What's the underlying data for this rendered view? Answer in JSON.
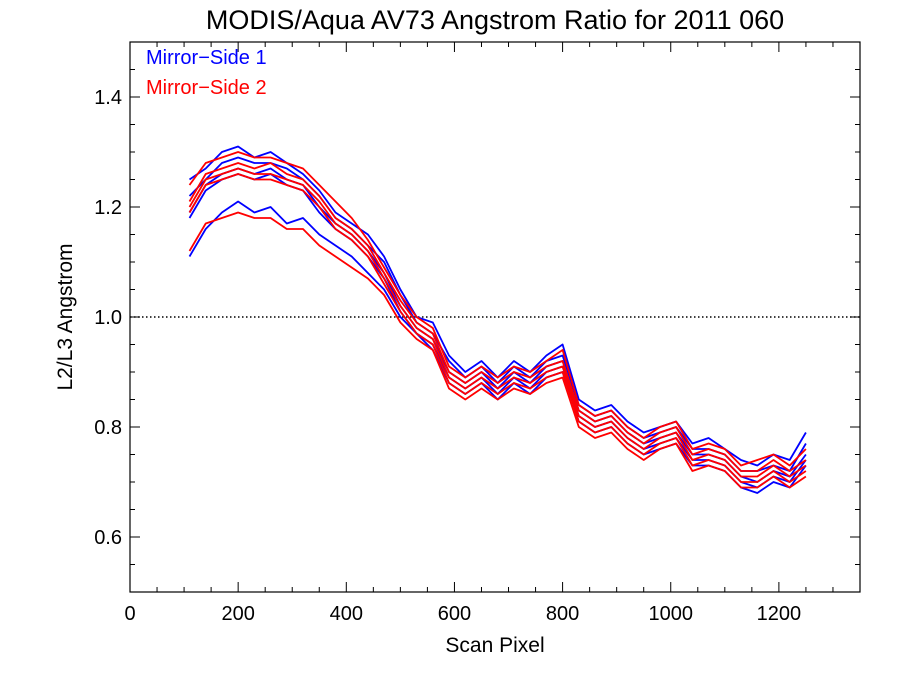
{
  "chart_data": {
    "type": "line",
    "title": "MODIS/Aqua AV73 Angstrom Ratio for 2011 060",
    "xlabel": "Scan Pixel",
    "ylabel": "L2/L3 Angstrom",
    "xlim": [
      0,
      1350
    ],
    "ylim": [
      0.5,
      1.5
    ],
    "xticks": [
      "0",
      "200",
      "400",
      "600",
      "800",
      "1000",
      "1200"
    ],
    "yticks": [
      "0.6",
      "0.8",
      "1.0",
      "1.2",
      "1.4"
    ],
    "reference_line": {
      "y": 1.0,
      "style": "dotted",
      "color": "#000000"
    },
    "legend_position": "top-left",
    "grid": false,
    "legend": [
      {
        "label": "Mirror−Side 1",
        "color": "#0000ff"
      },
      {
        "label": "Mirror−Side 2",
        "color": "#ff0000"
      }
    ],
    "x": [
      110,
      140,
      170,
      200,
      230,
      260,
      290,
      320,
      350,
      380,
      410,
      440,
      470,
      500,
      530,
      560,
      590,
      620,
      650,
      680,
      710,
      740,
      770,
      800,
      830,
      860,
      890,
      920,
      950,
      980,
      1010,
      1040,
      1070,
      1100,
      1130,
      1160,
      1190,
      1220,
      1250
    ],
    "series": [
      {
        "mirror_side": 1,
        "color": "#0000ff",
        "values": [
          1.25,
          1.27,
          1.3,
          1.31,
          1.29,
          1.3,
          1.28,
          1.26,
          1.23,
          1.19,
          1.17,
          1.15,
          1.11,
          1.05,
          1.0,
          0.99,
          0.93,
          0.9,
          0.92,
          0.89,
          0.92,
          0.9,
          0.93,
          0.95,
          0.85,
          0.83,
          0.84,
          0.81,
          0.79,
          0.8,
          0.81,
          0.77,
          0.78,
          0.76,
          0.74,
          0.73,
          0.75,
          0.74,
          0.79
        ]
      },
      {
        "mirror_side": 1,
        "color": "#0000ff",
        "values": [
          1.22,
          1.25,
          1.28,
          1.29,
          1.28,
          1.28,
          1.27,
          1.25,
          1.22,
          1.18,
          1.16,
          1.13,
          1.1,
          1.04,
          0.99,
          0.97,
          0.92,
          0.89,
          0.91,
          0.88,
          0.91,
          0.89,
          0.92,
          0.93,
          0.84,
          0.82,
          0.83,
          0.8,
          0.78,
          0.79,
          0.8,
          0.76,
          0.76,
          0.75,
          0.72,
          0.72,
          0.73,
          0.72,
          0.77
        ]
      },
      {
        "mirror_side": 1,
        "color": "#0000ff",
        "values": [
          1.19,
          1.24,
          1.26,
          1.27,
          1.26,
          1.27,
          1.25,
          1.24,
          1.2,
          1.17,
          1.15,
          1.12,
          1.08,
          1.02,
          0.98,
          0.96,
          0.9,
          0.88,
          0.9,
          0.87,
          0.9,
          0.88,
          0.91,
          0.92,
          0.83,
          0.81,
          0.82,
          0.79,
          0.77,
          0.78,
          0.79,
          0.75,
          0.75,
          0.74,
          0.71,
          0.7,
          0.72,
          0.71,
          0.75
        ]
      },
      {
        "mirror_side": 1,
        "color": "#0000ff",
        "values": [
          1.18,
          1.23,
          1.25,
          1.26,
          1.25,
          1.26,
          1.24,
          1.23,
          1.19,
          1.16,
          1.14,
          1.11,
          1.07,
          1.01,
          0.97,
          0.95,
          0.89,
          0.87,
          0.89,
          0.86,
          0.89,
          0.87,
          0.9,
          0.91,
          0.82,
          0.8,
          0.81,
          0.78,
          0.76,
          0.77,
          0.78,
          0.74,
          0.74,
          0.73,
          0.7,
          0.69,
          0.71,
          0.7,
          0.74
        ]
      },
      {
        "mirror_side": 1,
        "color": "#0000ff",
        "values": [
          1.11,
          1.16,
          1.19,
          1.21,
          1.19,
          1.2,
          1.17,
          1.18,
          1.15,
          1.13,
          1.11,
          1.08,
          1.05,
          1.0,
          0.97,
          0.94,
          0.88,
          0.86,
          0.88,
          0.85,
          0.88,
          0.86,
          0.89,
          0.9,
          0.81,
          0.79,
          0.8,
          0.77,
          0.75,
          0.76,
          0.77,
          0.73,
          0.73,
          0.72,
          0.69,
          0.68,
          0.7,
          0.69,
          0.73
        ]
      },
      {
        "mirror_side": 2,
        "color": "#ff0000",
        "values": [
          1.24,
          1.28,
          1.29,
          1.3,
          1.29,
          1.29,
          1.28,
          1.27,
          1.24,
          1.21,
          1.18,
          1.14,
          1.09,
          1.04,
          1.0,
          0.98,
          0.91,
          0.89,
          0.91,
          0.89,
          0.91,
          0.9,
          0.92,
          0.94,
          0.84,
          0.82,
          0.83,
          0.8,
          0.78,
          0.8,
          0.81,
          0.76,
          0.77,
          0.76,
          0.73,
          0.74,
          0.75,
          0.73,
          0.76
        ]
      },
      {
        "mirror_side": 2,
        "color": "#ff0000",
        "values": [
          1.21,
          1.26,
          1.27,
          1.28,
          1.27,
          1.28,
          1.26,
          1.25,
          1.22,
          1.18,
          1.16,
          1.13,
          1.08,
          1.03,
          0.99,
          0.97,
          0.9,
          0.88,
          0.9,
          0.88,
          0.9,
          0.89,
          0.91,
          0.92,
          0.83,
          0.81,
          0.82,
          0.79,
          0.77,
          0.79,
          0.8,
          0.75,
          0.76,
          0.75,
          0.72,
          0.72,
          0.74,
          0.72,
          0.74
        ]
      },
      {
        "mirror_side": 2,
        "color": "#ff0000",
        "values": [
          1.2,
          1.25,
          1.26,
          1.27,
          1.26,
          1.26,
          1.25,
          1.24,
          1.21,
          1.17,
          1.15,
          1.12,
          1.07,
          1.02,
          0.98,
          0.96,
          0.89,
          0.87,
          0.89,
          0.87,
          0.89,
          0.88,
          0.9,
          0.91,
          0.82,
          0.8,
          0.81,
          0.78,
          0.76,
          0.78,
          0.79,
          0.74,
          0.75,
          0.74,
          0.71,
          0.71,
          0.73,
          0.71,
          0.73
        ]
      },
      {
        "mirror_side": 2,
        "color": "#ff0000",
        "values": [
          1.19,
          1.24,
          1.25,
          1.26,
          1.25,
          1.25,
          1.24,
          1.23,
          1.2,
          1.16,
          1.14,
          1.11,
          1.06,
          1.01,
          0.97,
          0.95,
          0.88,
          0.86,
          0.88,
          0.86,
          0.88,
          0.87,
          0.89,
          0.9,
          0.81,
          0.79,
          0.8,
          0.77,
          0.75,
          0.77,
          0.78,
          0.73,
          0.74,
          0.73,
          0.7,
          0.7,
          0.72,
          0.7,
          0.72
        ]
      },
      {
        "mirror_side": 2,
        "color": "#ff0000",
        "values": [
          1.12,
          1.17,
          1.18,
          1.19,
          1.18,
          1.18,
          1.16,
          1.16,
          1.13,
          1.11,
          1.09,
          1.07,
          1.04,
          0.99,
          0.96,
          0.94,
          0.87,
          0.85,
          0.87,
          0.85,
          0.87,
          0.86,
          0.88,
          0.89,
          0.8,
          0.78,
          0.79,
          0.76,
          0.74,
          0.76,
          0.77,
          0.72,
          0.73,
          0.72,
          0.69,
          0.69,
          0.71,
          0.69,
          0.71
        ]
      }
    ]
  }
}
